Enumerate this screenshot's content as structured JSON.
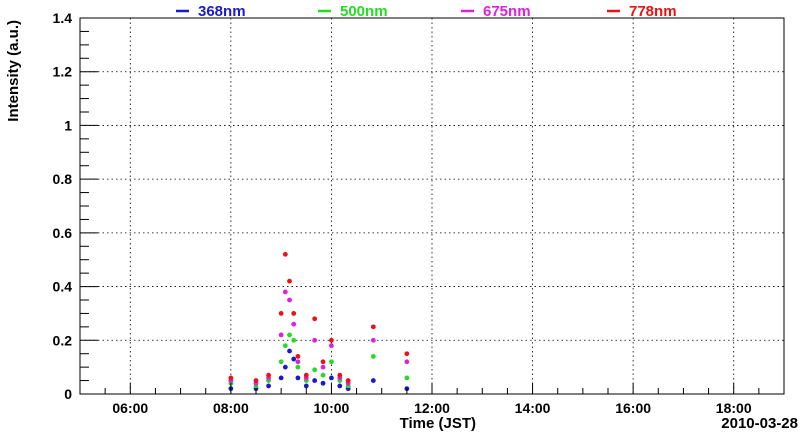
{
  "chart_data": {
    "type": "scatter",
    "xlabel": "Time (JST)",
    "ylabel": "Intensity (a.u.)",
    "date_label": "2010-03-28",
    "xlim": [
      "05:00",
      "19:00"
    ],
    "ylim": [
      0,
      1.4
    ],
    "x_ticks": [
      "06:00",
      "08:00",
      "10:00",
      "12:00",
      "14:00",
      "16:00",
      "18:00"
    ],
    "y_ticks": [
      "0",
      "0.2",
      "0.4",
      "0.6",
      "0.8",
      "1",
      "1.2",
      "1.4"
    ],
    "grid": true,
    "legend_position": "top",
    "series": [
      {
        "name": "368nm",
        "color": "#1a1acc",
        "points": [
          [
            "08:00",
            0.02
          ],
          [
            "08:30",
            0.02
          ],
          [
            "08:45",
            0.03
          ],
          [
            "09:00",
            0.06
          ],
          [
            "09:05",
            0.1
          ],
          [
            "09:10",
            0.16
          ],
          [
            "09:15",
            0.13
          ],
          [
            "09:20",
            0.06
          ],
          [
            "09:30",
            0.03
          ],
          [
            "09:40",
            0.05
          ],
          [
            "09:50",
            0.04
          ],
          [
            "10:00",
            0.06
          ],
          [
            "10:10",
            0.03
          ],
          [
            "10:20",
            0.02
          ],
          [
            "10:50",
            0.05
          ],
          [
            "11:30",
            0.02
          ]
        ]
      },
      {
        "name": "500nm",
        "color": "#22dd22",
        "points": [
          [
            "08:00",
            0.04
          ],
          [
            "08:30",
            0.03
          ],
          [
            "08:45",
            0.05
          ],
          [
            "09:00",
            0.12
          ],
          [
            "09:05",
            0.18
          ],
          [
            "09:10",
            0.22
          ],
          [
            "09:15",
            0.2
          ],
          [
            "09:20",
            0.1
          ],
          [
            "09:30",
            0.05
          ],
          [
            "09:40",
            0.09
          ],
          [
            "09:50",
            0.07
          ],
          [
            "10:00",
            0.12
          ],
          [
            "10:10",
            0.05
          ],
          [
            "10:20",
            0.03
          ],
          [
            "10:50",
            0.14
          ],
          [
            "11:30",
            0.06
          ]
        ]
      },
      {
        "name": "675nm",
        "color": "#e020e0",
        "points": [
          [
            "08:00",
            0.05
          ],
          [
            "08:30",
            0.04
          ],
          [
            "08:45",
            0.06
          ],
          [
            "09:00",
            0.22
          ],
          [
            "09:05",
            0.38
          ],
          [
            "09:10",
            0.35
          ],
          [
            "09:15",
            0.26
          ],
          [
            "09:20",
            0.12
          ],
          [
            "09:30",
            0.06
          ],
          [
            "09:40",
            0.2
          ],
          [
            "09:50",
            0.1
          ],
          [
            "10:00",
            0.18
          ],
          [
            "10:10",
            0.06
          ],
          [
            "10:20",
            0.04
          ],
          [
            "10:50",
            0.2
          ],
          [
            "11:30",
            0.12
          ]
        ]
      },
      {
        "name": "778nm",
        "color": "#ee1111",
        "points": [
          [
            "08:00",
            0.06
          ],
          [
            "08:30",
            0.05
          ],
          [
            "08:45",
            0.07
          ],
          [
            "09:00",
            0.3
          ],
          [
            "09:05",
            0.52
          ],
          [
            "09:10",
            0.42
          ],
          [
            "09:15",
            0.3
          ],
          [
            "09:20",
            0.14
          ],
          [
            "09:30",
            0.07
          ],
          [
            "09:40",
            0.28
          ],
          [
            "09:50",
            0.12
          ],
          [
            "10:00",
            0.2
          ],
          [
            "10:10",
            0.07
          ],
          [
            "10:20",
            0.05
          ],
          [
            "10:50",
            0.25
          ],
          [
            "11:30",
            0.15
          ]
        ]
      }
    ]
  }
}
